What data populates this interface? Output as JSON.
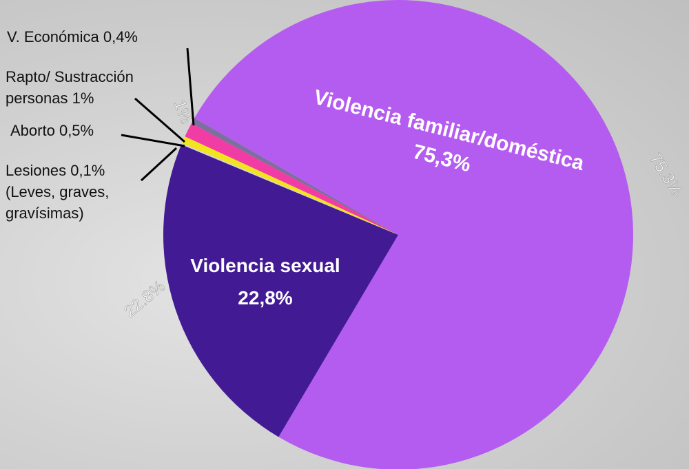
{
  "chart_data": {
    "type": "pie",
    "categories": [
      "Violencia familiar/doméstica",
      "Violencia sexual",
      "Lesiones",
      "Aborto",
      "Rapto/ Sustracción personas",
      "V. Económica"
    ],
    "values": [
      75.3,
      22.8,
      0.1,
      0.5,
      1,
      0.4
    ],
    "value_labels": [
      "75,3%",
      "22,8%",
      "0,1%",
      "0,5%",
      "1%",
      "0,4%"
    ],
    "secondary_labels": [
      "75.3%",
      "22.8%",
      null,
      null,
      "1%",
      null
    ],
    "notes": [
      null,
      null,
      "(Leves, graves, gravísimas)",
      null,
      null,
      null
    ],
    "colors": [
      "#b55cf0",
      "#421b94",
      "#d9d4e6",
      "#f2e51f",
      "#f03ca4",
      "#7d6f9e"
    ]
  }
}
